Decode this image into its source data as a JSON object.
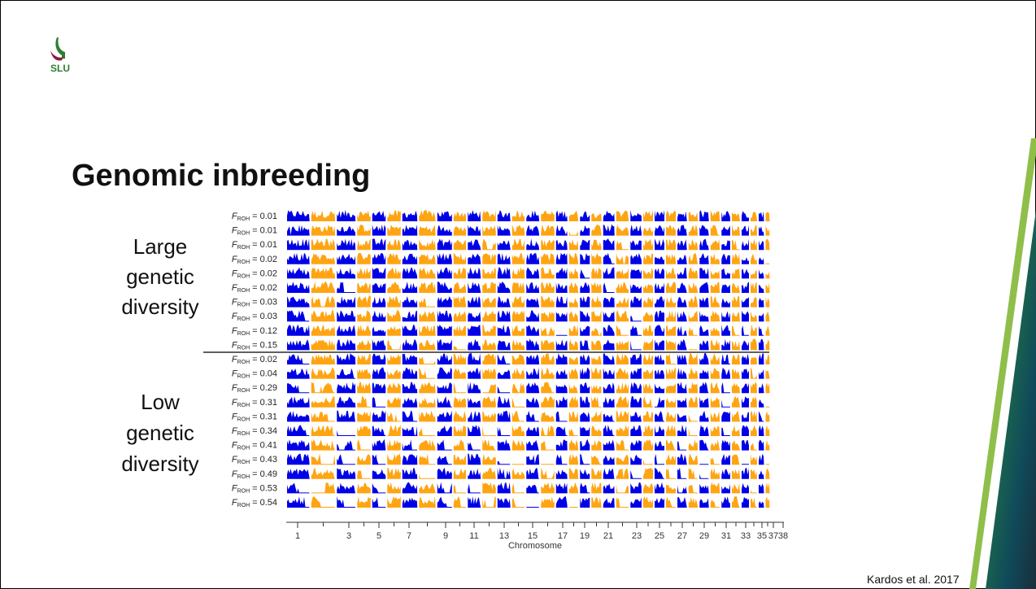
{
  "header": {
    "logo_text": "SLU"
  },
  "title": "Genomic inbreeding",
  "groups": [
    {
      "label": [
        "Large",
        "genetic",
        "diversity"
      ]
    },
    {
      "label": [
        "Low",
        "genetic",
        "diversity"
      ]
    }
  ],
  "figure": {
    "row_label": {
      "symbol": "F",
      "subscript": "ROH",
      "sign": "="
    },
    "rows": [
      0.01,
      0.01,
      0.01,
      0.02,
      0.02,
      0.02,
      0.03,
      0.03,
      0.12,
      0.15,
      0.02,
      0.04,
      0.29,
      0.31,
      0.31,
      0.34,
      0.41,
      0.43,
      0.49,
      0.53,
      0.54
    ],
    "xticks": [
      1,
      3,
      5,
      7,
      9,
      11,
      13,
      15,
      17,
      19,
      21,
      23,
      25,
      27,
      29,
      31,
      33,
      35,
      37,
      38
    ],
    "xlabel": "Chromosome"
  },
  "citation": "Kardos et al. 2017"
}
